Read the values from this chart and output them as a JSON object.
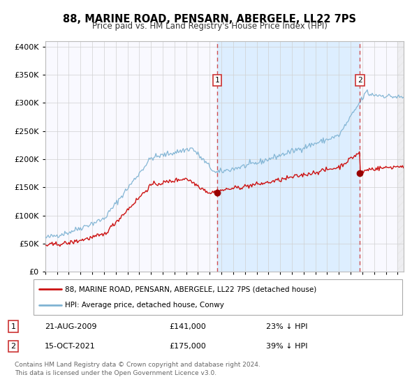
{
  "title": "88, MARINE ROAD, PENSARN, ABERGELE, LL22 7PS",
  "subtitle": "Price paid vs. HM Land Registry's House Price Index (HPI)",
  "title_fontsize": 10.5,
  "subtitle_fontsize": 8.5,
  "ylabel_ticks": [
    "£0",
    "£50K",
    "£100K",
    "£150K",
    "£200K",
    "£250K",
    "£300K",
    "£350K",
    "£400K"
  ],
  "ytick_values": [
    0,
    50000,
    100000,
    150000,
    200000,
    250000,
    300000,
    350000,
    400000
  ],
  "ylim": [
    0,
    410000
  ],
  "xlim_start": 1995.0,
  "xlim_end": 2025.5,
  "hpi_color": "#7fb3d3",
  "price_color": "#cc1111",
  "shade_color": "#ddeeff",
  "marker1_date": 2009.64,
  "marker1_value": 141000,
  "marker2_date": 2021.79,
  "marker2_value": 175000,
  "vline1_x": 2009.64,
  "vline2_x": 2021.79,
  "legend_label1": "88, MARINE ROAD, PENSARN, ABERGELE, LL22 7PS (detached house)",
  "legend_label2": "HPI: Average price, detached house, Conwy",
  "table_row1_label": "1",
  "table_row1_date": "21-AUG-2009",
  "table_row1_price": "£141,000",
  "table_row1_pct": "23% ↓ HPI",
  "table_row2_label": "2",
  "table_row2_date": "15-OCT-2021",
  "table_row2_price": "£175,000",
  "table_row2_pct": "39% ↓ HPI",
  "footnote": "Contains HM Land Registry data © Crown copyright and database right 2024.\nThis data is licensed under the Open Government Licence v3.0.",
  "bg_color": "#ffffff",
  "plot_bg_color": "#f9f9ff",
  "grid_color": "#d0d0d0"
}
